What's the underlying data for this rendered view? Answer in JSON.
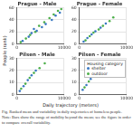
{
  "figure": {
    "y_label": "People (rank)",
    "x_label": "Daily trajectory (meters)",
    "legend_title": "Housing category",
    "caption": "Fig. Ranked mean and variability in daily trajectories of homeless people. Note: Bars show the range of mobility beyond the mean; see the figure in order to compare overall variability."
  },
  "chart_data": [
    {
      "type": "scatter",
      "title": "Prague - Male",
      "xlim": [
        0,
        10000
      ],
      "xticks": [
        0,
        10000
      ],
      "ylim": [
        0,
        60
      ],
      "yticks": [
        0,
        20,
        40,
        60
      ],
      "grid": true,
      "series": [
        {
          "name": "shelter",
          "color": "#3a78c2",
          "marker": "circle",
          "x": [
            1200,
            2500,
            3100,
            4200,
            5300,
            6100,
            7400,
            8200,
            9100,
            3600
          ],
          "values": [
            5,
            12,
            18,
            22,
            28,
            33,
            40,
            47,
            52,
            25
          ]
        },
        {
          "name": "outdoor",
          "color": "#4daf4a",
          "marker": "circle",
          "x": [
            800,
            1900,
            2800,
            3900,
            4700,
            5800,
            6900,
            7800,
            8700,
            9400
          ],
          "values": [
            3,
            9,
            15,
            20,
            30,
            36,
            43,
            49,
            55,
            58
          ]
        }
      ]
    },
    {
      "type": "scatter",
      "title": "Prague - Female",
      "xlim": [
        0,
        10000
      ],
      "xticks": [
        0,
        10000
      ],
      "ylim": [
        0,
        60
      ],
      "yticks": [
        0,
        20,
        40,
        60
      ],
      "grid": true,
      "series": [
        {
          "name": "shelter",
          "color": "#3a78c2",
          "marker": "circle",
          "x": [
            900,
            1700,
            2600,
            3400,
            4500,
            5600
          ],
          "values": [
            4,
            10,
            16,
            21,
            27,
            34
          ]
        },
        {
          "name": "outdoor",
          "color": "#4daf4a",
          "marker": "circle",
          "x": [
            1300,
            2200,
            3000,
            4100,
            5000,
            6400,
            7200
          ],
          "values": [
            6,
            13,
            19,
            24,
            30,
            38,
            44
          ]
        }
      ]
    },
    {
      "type": "scatter",
      "title": "Pilsen - Male",
      "xlim": [
        0,
        10000
      ],
      "xticks": [
        0,
        10000
      ],
      "ylim": [
        0,
        30
      ],
      "yticks": [
        0,
        10,
        20,
        30
      ],
      "grid": true,
      "series": [
        {
          "name": "shelter",
          "color": "#3a78c2",
          "marker": "circle",
          "x": [
            600,
            1400,
            2300,
            3100,
            4000
          ],
          "values": [
            3,
            7,
            12,
            16,
            20
          ]
        },
        {
          "name": "outdoor",
          "color": "#4daf4a",
          "marker": "circle",
          "x": [
            900,
            1800,
            2700,
            3600,
            4800,
            5900
          ],
          "values": [
            5,
            9,
            14,
            18,
            22,
            26
          ]
        }
      ]
    },
    {
      "type": "scatter",
      "title": "Pilsen - Female",
      "xlim": [
        0,
        10000
      ],
      "xticks": [
        0,
        10000
      ],
      "ylim": [
        0,
        30
      ],
      "yticks": [
        0,
        10,
        20,
        30
      ],
      "grid": true,
      "legend": "upper right",
      "series": [
        {
          "name": "shelter",
          "color": "#3a78c2",
          "marker": "circle",
          "x": [
            700,
            1500,
            2400,
            3300
          ],
          "values": [
            4,
            8,
            13,
            18
          ]
        },
        {
          "name": "outdoor",
          "color": "#4daf4a",
          "marker": "circle",
          "x": [
            1100,
            2000,
            2900,
            4200
          ],
          "values": [
            6,
            11,
            15,
            21
          ]
        }
      ]
    }
  ]
}
